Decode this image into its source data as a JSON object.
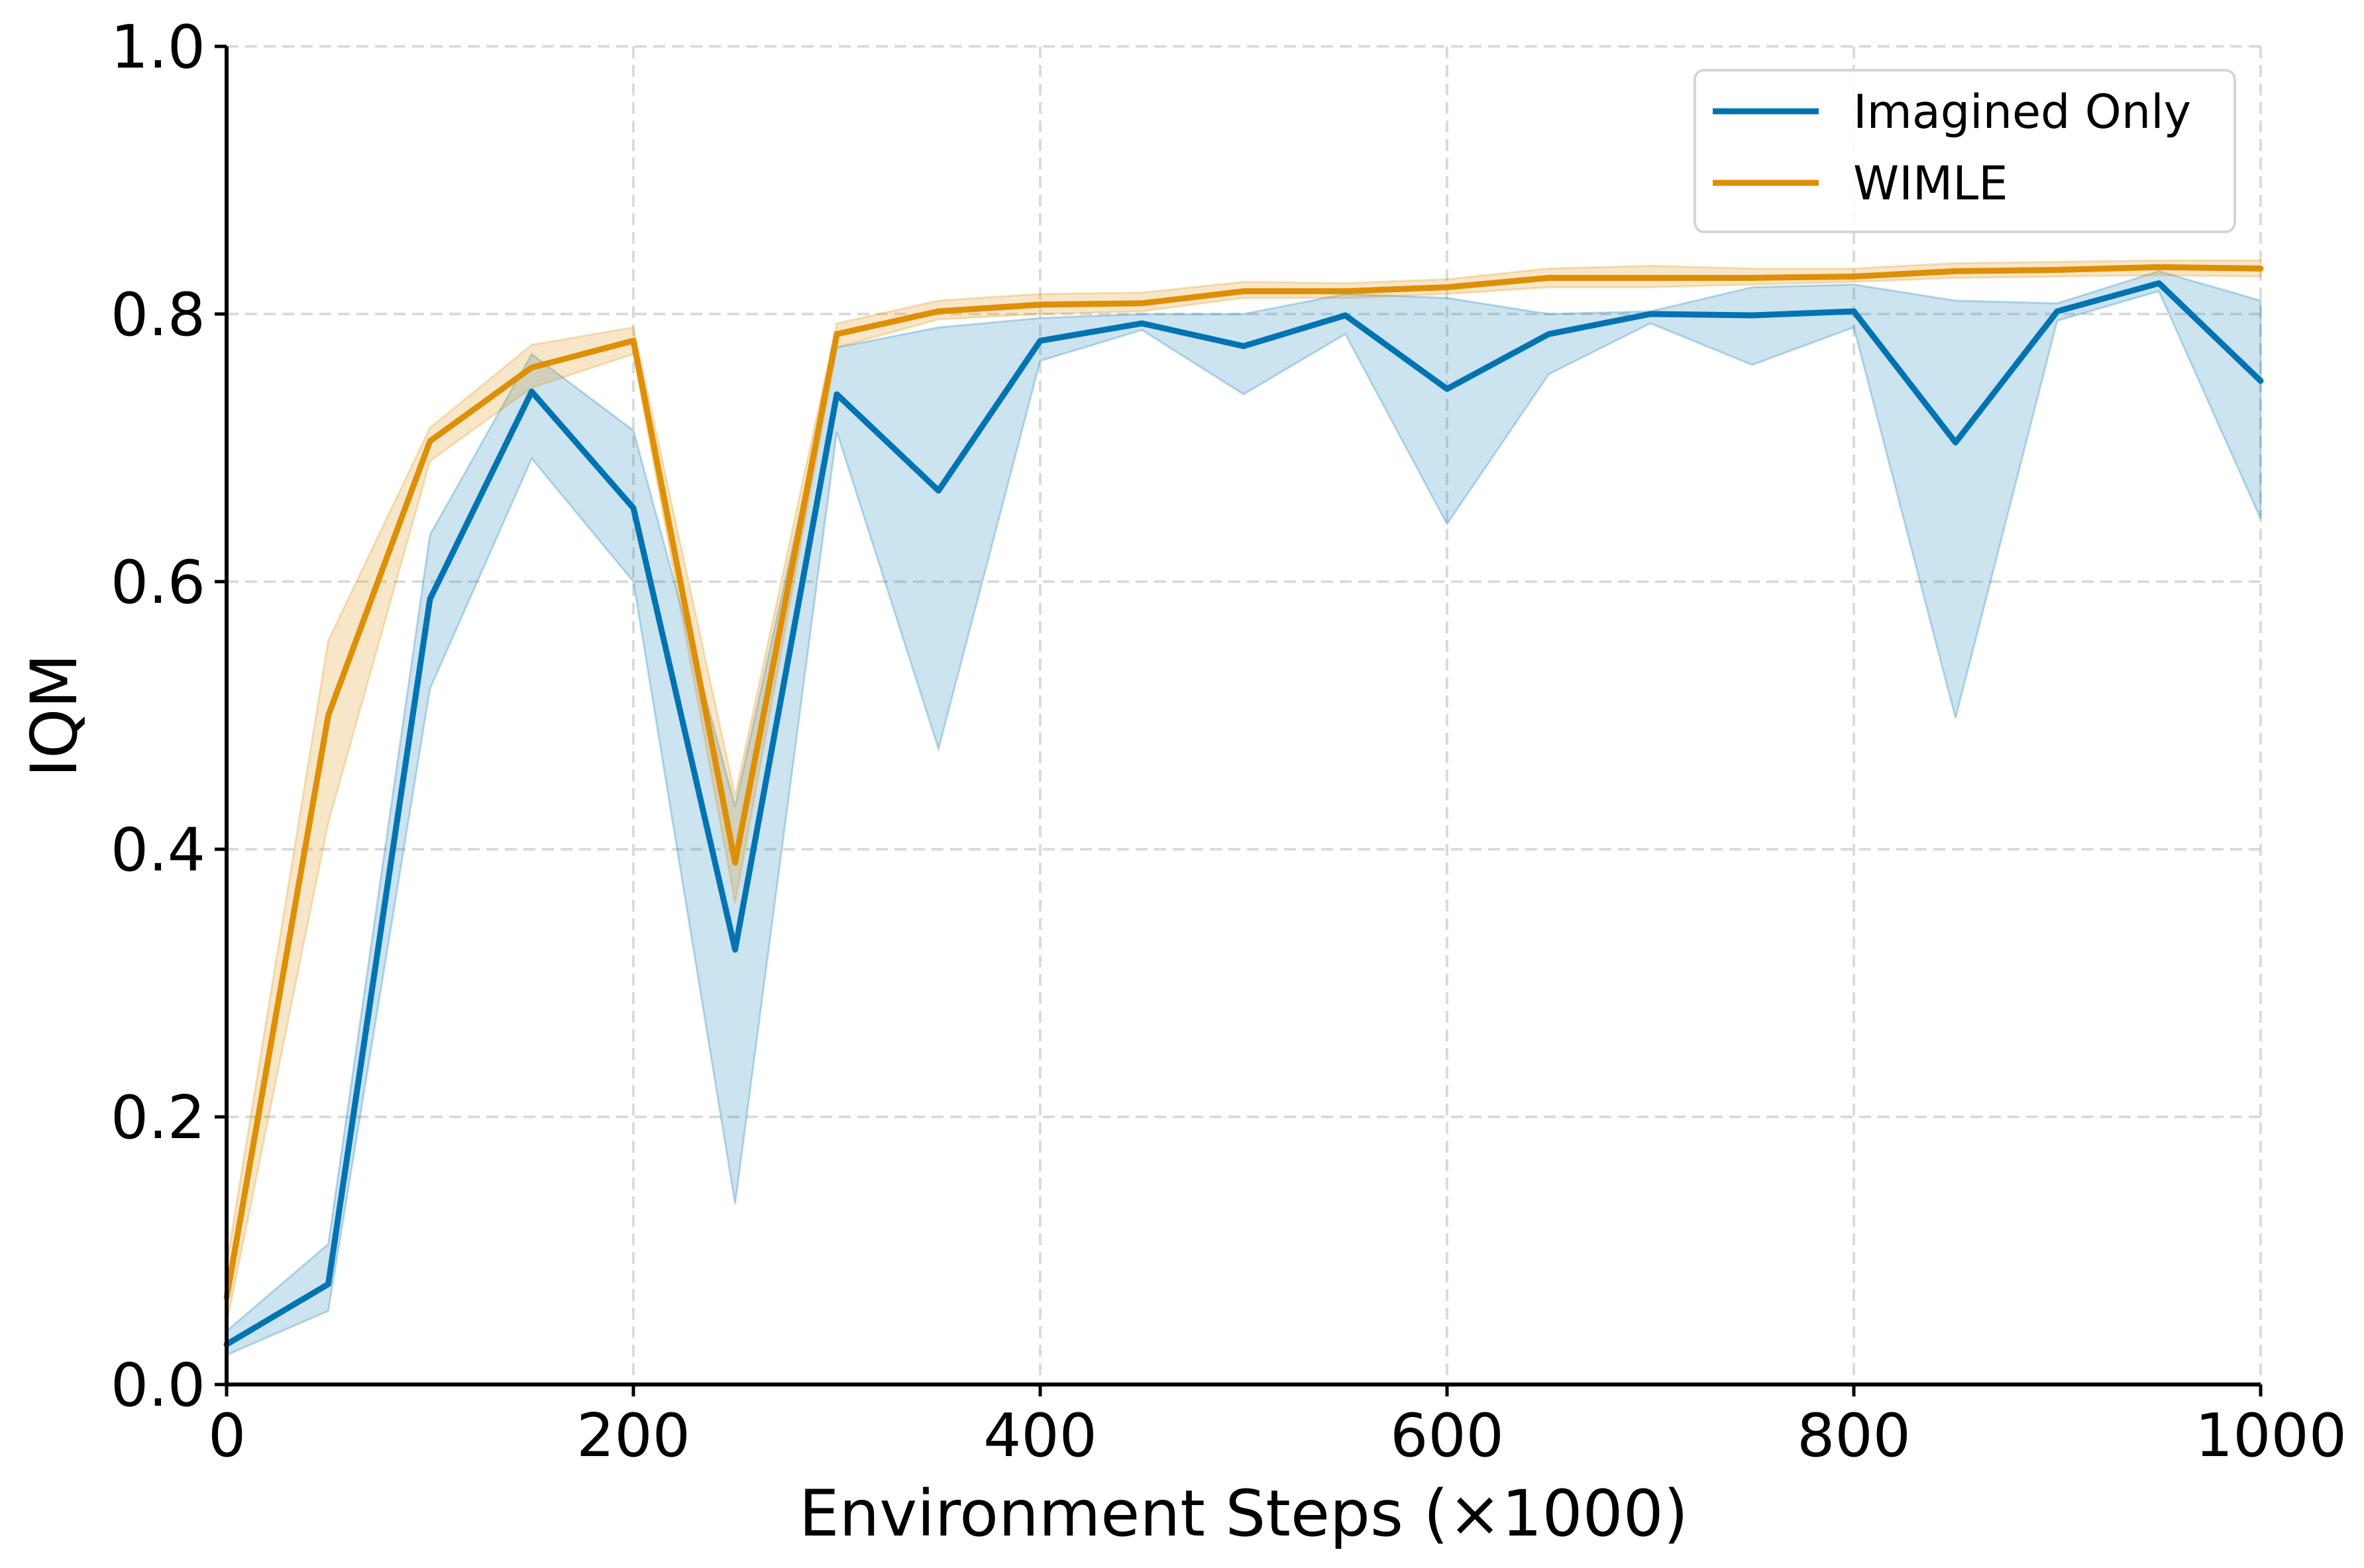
{
  "chart_data": {
    "type": "line",
    "title": "",
    "xlabel": "Environment Steps (×1000)",
    "ylabel": "IQM",
    "xlim": [
      0,
      1000
    ],
    "ylim": [
      0,
      1.0
    ],
    "xticks": [
      0,
      200,
      400,
      600,
      800,
      1000
    ],
    "xtick_labels": [
      "0",
      "200",
      "400",
      "600",
      "800",
      "1000"
    ],
    "yticks": [
      0,
      0.2,
      0.4,
      0.6,
      0.8,
      1.0
    ],
    "ytick_labels": [
      "0.0",
      "0.2",
      "0.4",
      "0.6",
      "0.8",
      "1.0"
    ],
    "grid": true,
    "legend_position": "top-right",
    "x": [
      0,
      50,
      100,
      150,
      200,
      250,
      300,
      350,
      400,
      450,
      500,
      550,
      600,
      650,
      700,
      750,
      800,
      850,
      900,
      950,
      1000
    ],
    "series": [
      {
        "name": "Imagined Only",
        "color": "#0173b2",
        "values": [
          0.03,
          0.075,
          0.587,
          0.742,
          0.655,
          0.325,
          0.74,
          0.668,
          0.78,
          0.793,
          0.776,
          0.799,
          0.744,
          0.785,
          0.8,
          0.799,
          0.802,
          0.704,
          0.802,
          0.823,
          0.75
        ],
        "lower": [
          0.022,
          0.055,
          0.52,
          0.692,
          0.6,
          0.135,
          0.712,
          0.475,
          0.765,
          0.788,
          0.74,
          0.785,
          0.643,
          0.755,
          0.793,
          0.762,
          0.79,
          0.498,
          0.795,
          0.817,
          0.647
        ],
        "upper": [
          0.04,
          0.105,
          0.635,
          0.77,
          0.713,
          0.432,
          0.775,
          0.79,
          0.797,
          0.8,
          0.8,
          0.815,
          0.812,
          0.8,
          0.802,
          0.82,
          0.822,
          0.81,
          0.808,
          0.832,
          0.81
        ]
      },
      {
        "name": "WIMLE",
        "color": "#de8f05",
        "values": [
          0.065,
          0.5,
          0.705,
          0.76,
          0.78,
          0.39,
          0.785,
          0.802,
          0.807,
          0.808,
          0.817,
          0.817,
          0.82,
          0.827,
          0.827,
          0.827,
          0.828,
          0.832,
          0.833,
          0.835,
          0.834
        ],
        "lower": [
          0.045,
          0.42,
          0.69,
          0.745,
          0.77,
          0.36,
          0.775,
          0.796,
          0.8,
          0.802,
          0.812,
          0.812,
          0.815,
          0.82,
          0.82,
          0.822,
          0.824,
          0.827,
          0.828,
          0.829,
          0.828
        ],
        "upper": [
          0.09,
          0.556,
          0.715,
          0.777,
          0.79,
          0.44,
          0.793,
          0.81,
          0.815,
          0.816,
          0.824,
          0.823,
          0.826,
          0.834,
          0.836,
          0.834,
          0.834,
          0.838,
          0.839,
          0.84,
          0.84
        ]
      }
    ]
  }
}
